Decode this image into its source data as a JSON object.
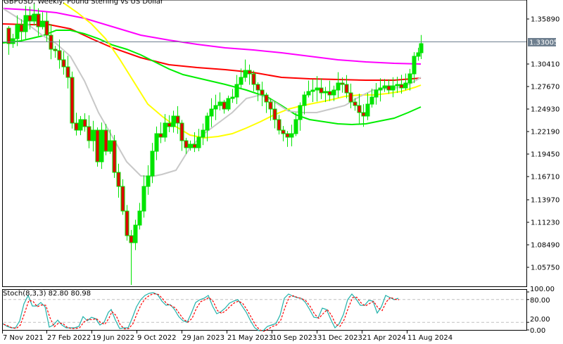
{
  "window": {
    "title": "GBPUSD, Weekly:  Pound Sterling vs US Dollar"
  },
  "price_axis": {
    "ticks": [
      "1.35890",
      "1.33005",
      "1.30410",
      "1.27670",
      "1.24930",
      "1.22190",
      "1.19450",
      "1.16710",
      "1.13970",
      "1.11230",
      "1.08490",
      "1.05750"
    ],
    "current_price_label": "1.33005",
    "current_price_bg": "#6e7f8f"
  },
  "time_axis": {
    "labels": [
      "7 Nov 2021",
      "27 Feb 2022",
      "19 Jun 2022",
      "9 Oct 2022",
      "29 Jan 2023",
      "21 May 2023",
      "10 Sep 2023",
      "31 Dec 2023",
      "21 Apr 2024",
      "11 Aug 2024"
    ]
  },
  "stochastic": {
    "label": "Stoch(8,3,3) 82.80 80.98",
    "levels": [
      "100.00",
      "80.00",
      "20.00",
      "0.00"
    ]
  },
  "colors": {
    "bull": "#00e400",
    "bear_fill": "#e00000",
    "ma_magenta": "#ff00ff",
    "ma_red": "#ff0000",
    "ma_green": "#00ee00",
    "ma_yellow": "#ffff00",
    "ma_gray": "#c8c8c8",
    "stoch_main": "#20b2aa",
    "stoch_signal": "#ff0000"
  },
  "chart_data": {
    "type": "candlestick",
    "title": "GBPUSD, Weekly: Pound Sterling vs US Dollar",
    "xlabel": "",
    "ylabel": "",
    "ylim": [
      1.04,
      1.37
    ],
    "x_tick_labels": [
      "7 Nov 2021",
      "27 Feb 2022",
      "19 Jun 2022",
      "9 Oct 2022",
      "29 Jan 2023",
      "21 May 2023",
      "10 Sep 2023",
      "31 Dec 2023",
      "21 Apr 2024",
      "11 Aug 2024"
    ],
    "y_tick_labels": [
      1.3589,
      1.3041,
      1.2767,
      1.2493,
      1.2219,
      1.1945,
      1.1671,
      1.1397,
      1.1123,
      1.0849,
      1.0575
    ],
    "current_price": 1.33005,
    "approx_close_path": [
      {
        "date": "2021-11-07",
        "close": 1.335
      },
      {
        "date": "2022-01-09",
        "close": 1.365
      },
      {
        "date": "2022-02-27",
        "close": 1.34
      },
      {
        "date": "2022-04-24",
        "close": 1.26
      },
      {
        "date": "2022-06-19",
        "close": 1.225
      },
      {
        "date": "2022-08-14",
        "close": 1.19
      },
      {
        "date": "2022-09-25",
        "close": 1.07
      },
      {
        "date": "2022-10-09",
        "close": 1.115
      },
      {
        "date": "2022-12-11",
        "close": 1.225
      },
      {
        "date": "2023-01-29",
        "close": 1.235
      },
      {
        "date": "2023-03-05",
        "close": 1.205
      },
      {
        "date": "2023-05-07",
        "close": 1.26
      },
      {
        "date": "2023-07-09",
        "close": 1.295
      },
      {
        "date": "2023-08-13",
        "close": 1.27
      },
      {
        "date": "2023-09-24",
        "close": 1.22
      },
      {
        "date": "2023-11-19",
        "close": 1.25
      },
      {
        "date": "2023-12-31",
        "close": 1.272
      },
      {
        "date": "2024-02-25",
        "close": 1.265
      },
      {
        "date": "2024-04-21",
        "close": 1.245
      },
      {
        "date": "2024-06-16",
        "close": 1.275
      },
      {
        "date": "2024-07-14",
        "close": 1.295
      },
      {
        "date": "2024-08-11",
        "close": 1.285
      },
      {
        "date": "2024-09-01",
        "close": 1.315
      },
      {
        "date": "2024-09-22",
        "close": 1.33
      }
    ],
    "moving_averages": [
      {
        "name": "MA magenta (slowest)",
        "color": "#ff00ff",
        "start": 1.365,
        "end": 1.303
      },
      {
        "name": "MA red",
        "color": "#ff0000",
        "start": 1.345,
        "end": 1.285
      },
      {
        "name": "MA green",
        "color": "#00ee00",
        "start": 1.333,
        "end": 1.248
      },
      {
        "name": "MA yellow",
        "color": "#ffff00",
        "start": 1.38,
        "end": 1.273
      },
      {
        "name": "MA gray (fastest)",
        "color": "#c8c8c8",
        "start": 1.36,
        "end": 1.285
      }
    ],
    "indicator": {
      "name": "Stoch(8,3,3)",
      "main": 82.8,
      "signal": 80.98,
      "levels": [
        100,
        80,
        20,
        0
      ]
    }
  }
}
